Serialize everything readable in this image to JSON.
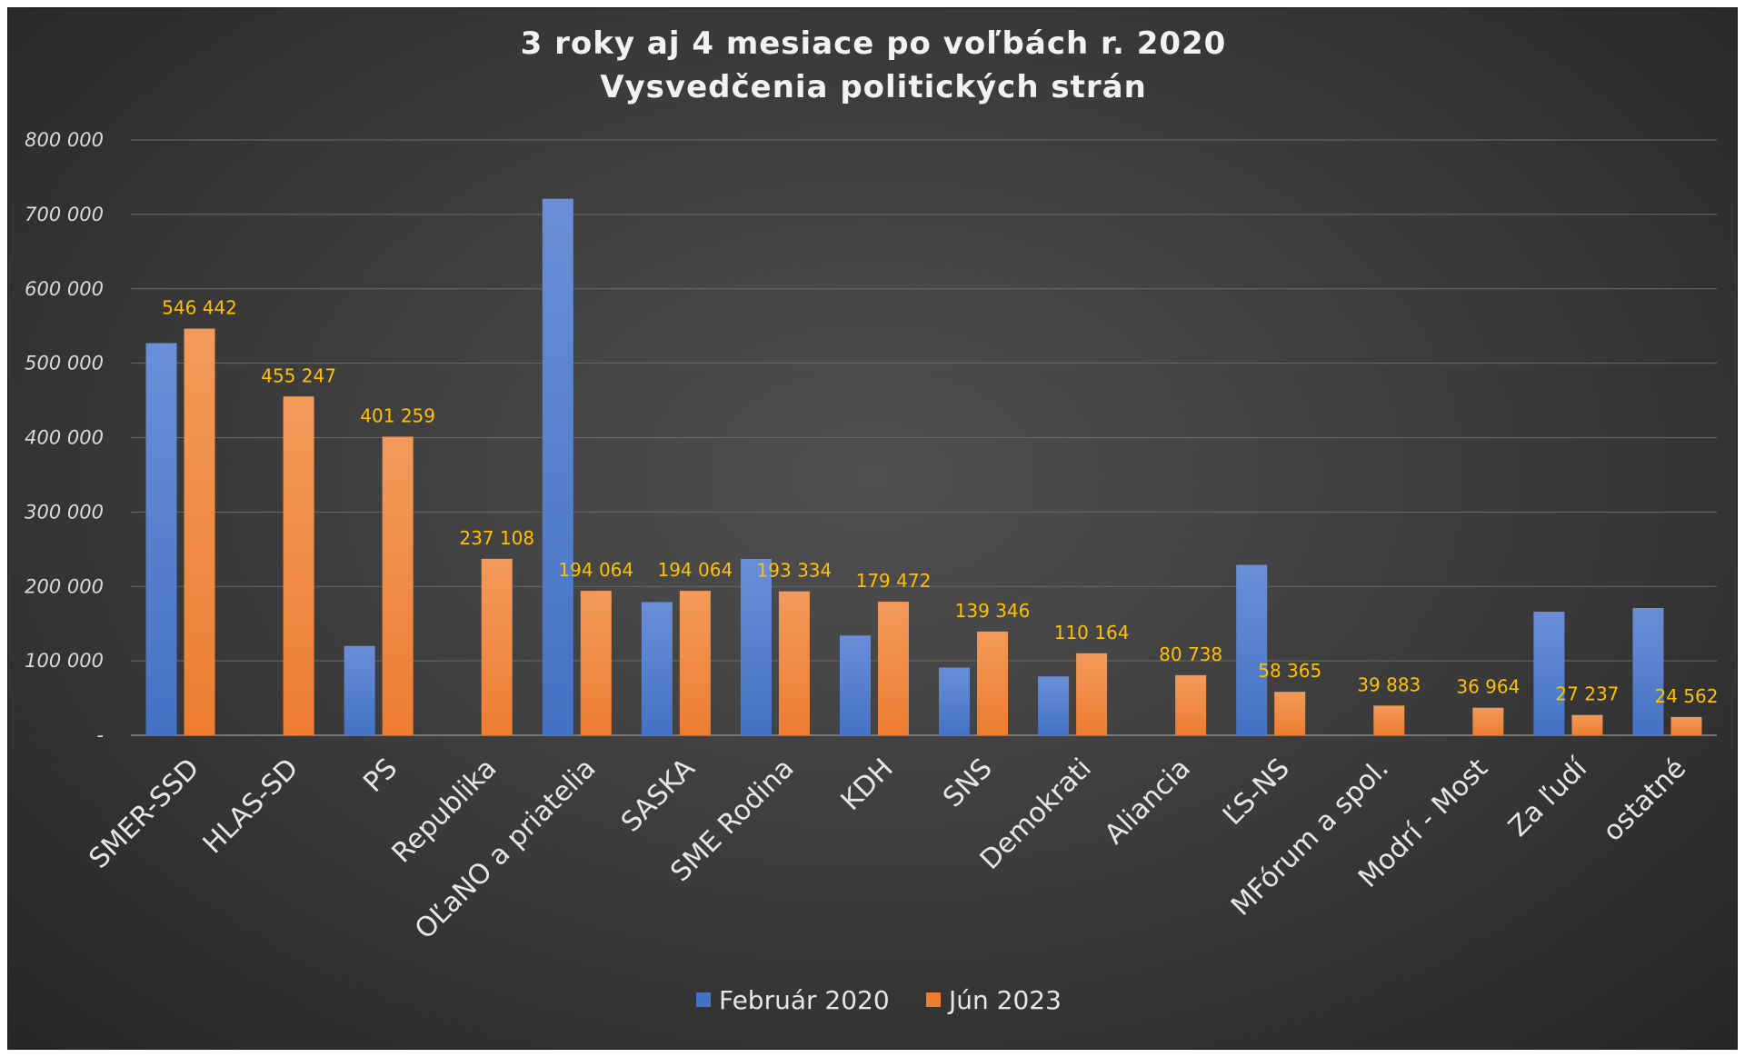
{
  "chart_data": {
    "type": "bar",
    "title": "3 roky aj 4 mesiace po voľbách r. 2020",
    "subtitle": "Vysvedčenia politických strán",
    "categories": [
      "SMER-SSD",
      "HLAS-SD",
      "PS",
      "Republika",
      "OĽaNO a priatelia",
      "SASKA",
      "SME Rodina",
      "KDH",
      "SNS",
      "Demokrati",
      "Aliancia",
      "ĽS-NS",
      "MFórum a spol.",
      "Modrí - Most",
      "Za ľudí",
      "ostatné"
    ],
    "series": [
      {
        "name": "Február 2020",
        "color": "#4472c4",
        "values": [
          527000,
          null,
          120000,
          null,
          721000,
          179000,
          237000,
          134000,
          91000,
          79000,
          null,
          229000,
          null,
          null,
          166000,
          171000
        ],
        "labels": []
      },
      {
        "name": "Jún 2023",
        "color": "#ed7d31",
        "values": [
          546442,
          455247,
          401259,
          237108,
          194064,
          194064,
          193334,
          179472,
          139346,
          110164,
          80738,
          58365,
          39883,
          36964,
          27237,
          24562
        ],
        "labels": [
          "546 442",
          "455 247",
          "401 259",
          "237 108",
          "194 064",
          "194 064",
          "193 334",
          "179 472",
          "139 346",
          "110 164",
          "80 738",
          "58 365",
          "39 883",
          "36 964",
          "27 237",
          "24 562"
        ]
      }
    ],
    "ylim": [
      0,
      800000
    ],
    "yticks": [
      0,
      100000,
      200000,
      300000,
      400000,
      500000,
      600000,
      700000,
      800000
    ],
    "ytick_labels": [
      "-",
      "100 000",
      "200 000",
      "300 000",
      "400 000",
      "500 000",
      "600 000",
      "700 000",
      "800 000"
    ],
    "grid": true,
    "legend": "bottom-center",
    "label_color": "#ffc000"
  }
}
